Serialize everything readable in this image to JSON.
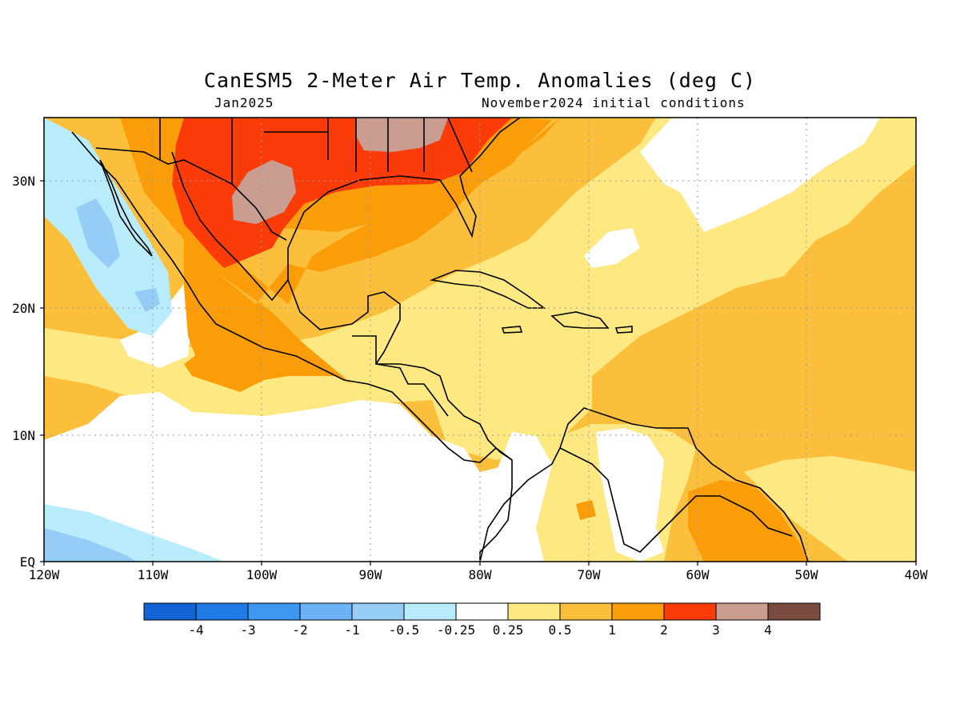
{
  "title": "CanESM5 2-Meter Air Temp. Anomalies (deg C)",
  "subtitle_left": "Jan2025",
  "subtitle_right": "November2024 initial conditions",
  "lat_labels": [
    "30N",
    "20N",
    "10N",
    "EQ"
  ],
  "lon_labels": [
    "120W",
    "110W",
    "100W",
    "90W",
    "80W",
    "70W",
    "60W",
    "50W",
    "40W"
  ],
  "colorbar": {
    "labels": [
      "-4",
      "-3",
      "-2",
      "-1",
      "-0.5",
      "-0.25",
      "0.25",
      "0.5",
      "1",
      "2",
      "3",
      "4"
    ],
    "colors": [
      "#1463d6",
      "#1f7ae6",
      "#3d96f0",
      "#6cb3f5",
      "#96cdf7",
      "#b8ecfa",
      "#ffffff",
      "#fde881",
      "#fcbf3c",
      "#fb9d09",
      "#fb3c09",
      "#c99e91",
      "#7a4a3f"
    ]
  },
  "colors": {
    "land_outline": "#000000",
    "grid": "#9a9a9a"
  }
}
